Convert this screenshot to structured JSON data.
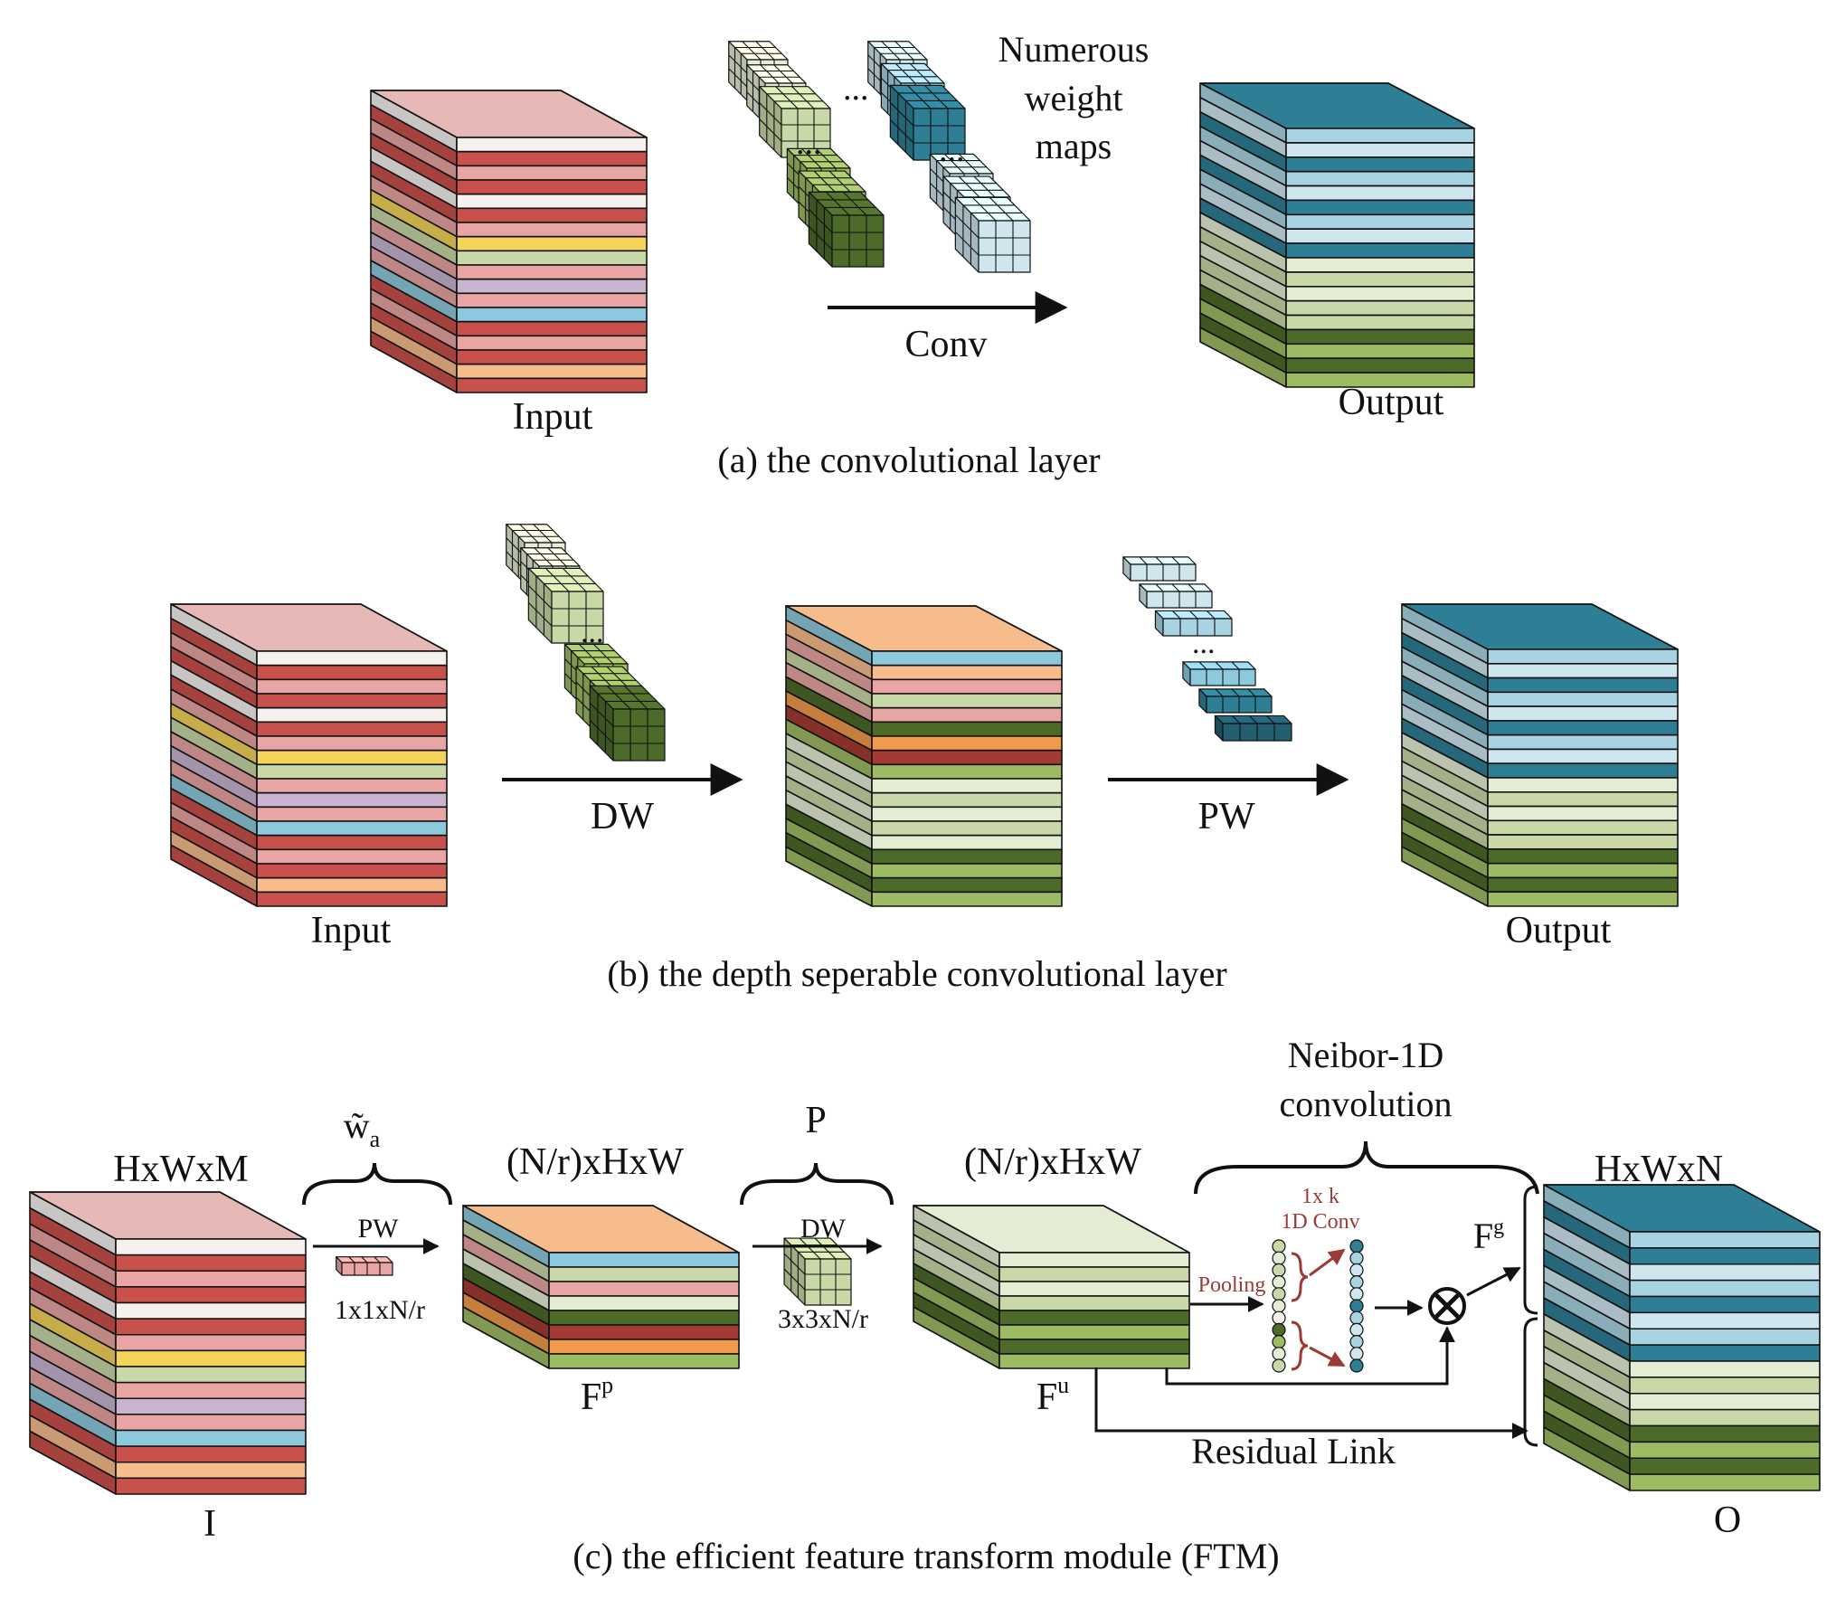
{
  "panel_a": {
    "caption": "(a) the convolutional layer",
    "input_label": "Input",
    "output_label": "Output",
    "op_label": "Conv",
    "weights_label_line1": "Numerous",
    "weights_label_line2": "weight",
    "weights_label_line3": "maps",
    "ellipsis": "..."
  },
  "panel_b": {
    "caption": "(b) the depth seperable convolutional layer",
    "input_label": "Input",
    "output_label": "Output",
    "dw_label": "DW",
    "pw_label": "PW",
    "ellipsis": "..."
  },
  "panel_c": {
    "caption": "(c) the efficient feature transform module (FTM)",
    "input_dims": "HxWxM",
    "input_symbol": "I",
    "wa_base": "w̃",
    "wa_sub": "a",
    "pw_label": "PW",
    "pw_kernel_dims": "1x1xN/r",
    "fp_dims": "(N/r)xHxW",
    "fp_base": "F",
    "fp_sup": "p",
    "p_label": "P",
    "dw_label": "DW",
    "dw_kernel_dims": "3x3xN/r",
    "fu_dims": "(N/r)xHxW",
    "fu_base": "F",
    "fu_sup": "u",
    "neibor_line1": "Neibor-1D",
    "neibor_line2": "convolution",
    "conv1d_line1": "1x k",
    "conv1d_line2": "1D Conv",
    "pooling_label": "Pooling",
    "fg_base": "F",
    "fg_sup": "g",
    "residual_label": "Residual Link",
    "output_dims": "HxWxN",
    "output_symbol": "O"
  },
  "colors": {
    "red": "#c9514c",
    "pink": "#e8a5a3",
    "cover_pink": "#e6b8b6",
    "white": "#f4f1ef",
    "yellow": "#f3d35a",
    "light_green": "#c8d8a6",
    "pale_green": "#e4ecd3",
    "mid_green": "#9dbb62",
    "dark_green": "#4c6a28",
    "lavender": "#c8b4d0",
    "sky": "#8cc9dd",
    "pale_blue": "#cfe6ef",
    "light_blue": "#a8d3e3",
    "teal": "#2e7f96",
    "peach": "#f6bc8c",
    "orange": "#f29a4b",
    "maroon": "#a33a33",
    "annotation_red": "#9b3a36"
  }
}
